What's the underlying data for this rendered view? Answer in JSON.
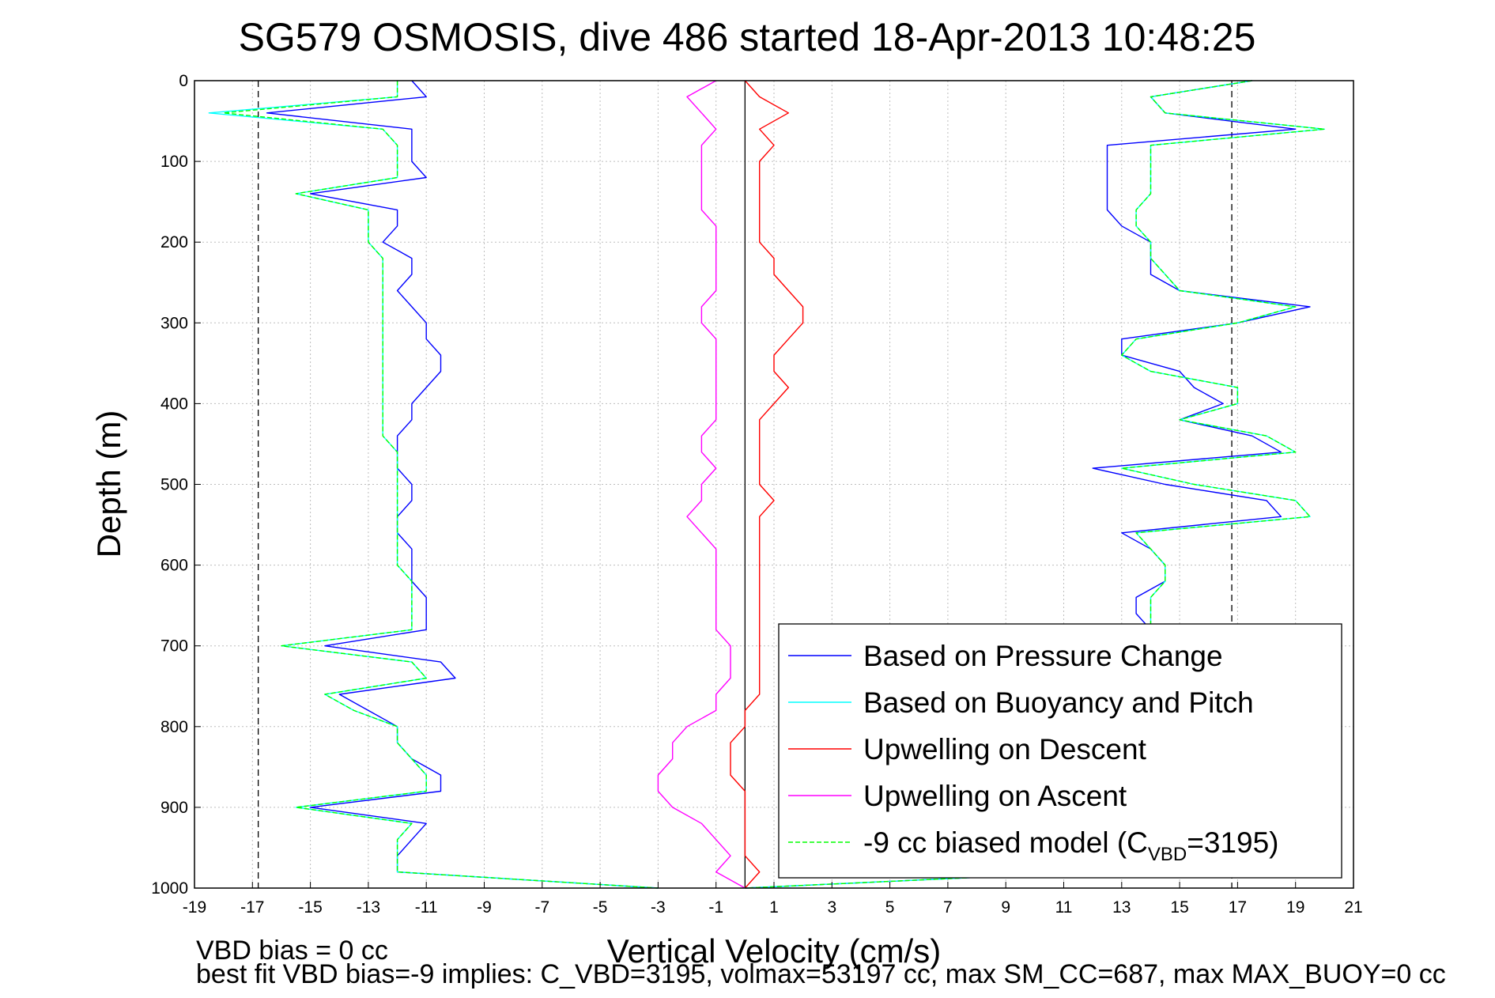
{
  "chart_data": {
    "type": "line",
    "title": "SG579 OSMOSIS, dive 486 started 18-Apr-2013 10:48:25",
    "xlabel": "Vertical Velocity (cm/s)",
    "ylabel": "Depth (m)",
    "xlim": [
      -19,
      21
    ],
    "ylim": [
      0,
      1000
    ],
    "y_reversed": true,
    "grid": true,
    "x_ticks": [
      -19,
      -17,
      -15,
      -13,
      -11,
      -9,
      -7,
      -5,
      -3,
      -1,
      1,
      3,
      5,
      7,
      9,
      11,
      13,
      15,
      17,
      19,
      21
    ],
    "y_ticks": [
      0,
      100,
      200,
      300,
      400,
      500,
      600,
      700,
      800,
      900,
      1000
    ],
    "reference_lines": [
      {
        "x": 0,
        "style": "solid",
        "color": "#000000"
      },
      {
        "x": -16.8,
        "style": "dashed",
        "color": "#000000"
      },
      {
        "x": 16.8,
        "style": "dashed",
        "color": "#000000"
      }
    ],
    "legend": {
      "position": "bottom-right",
      "entries": [
        {
          "label": "Based on Pressure Change",
          "color": "#0000ff",
          "style": "solid"
        },
        {
          "label": "Based on Buoyancy and Pitch",
          "color": "#00ffff",
          "style": "solid"
        },
        {
          "label": "Upwelling on Descent",
          "color": "#ff0000",
          "style": "solid"
        },
        {
          "label": "Upwelling on Ascent",
          "color": "#ff00ff",
          "style": "solid"
        },
        {
          "label": "-9 cc biased model (C",
          "sub": "VBD",
          "suffix": "=3195)",
          "color": "#00ff00",
          "style": "dashed"
        }
      ]
    },
    "series": [
      {
        "name": "Based on Pressure Change",
        "color": "#0000ff",
        "depth": [
          0,
          20,
          40,
          60,
          80,
          100,
          120,
          140,
          160,
          180,
          200,
          220,
          240,
          260,
          280,
          300,
          320,
          340,
          360,
          380,
          400,
          420,
          440,
          460,
          480,
          500,
          520,
          540,
          560,
          580,
          600,
          620,
          640,
          660,
          680,
          700,
          720,
          740,
          760,
          780,
          800,
          820,
          840,
          860,
          880,
          900,
          920,
          940,
          960,
          980,
          1000
        ],
        "descent": [
          -11.5,
          -11.0,
          -16.5,
          -11.5,
          -11.5,
          -11.5,
          -11.0,
          -15.0,
          -12.0,
          -12.0,
          -12.5,
          -11.5,
          -11.5,
          -12.0,
          -11.5,
          -11.0,
          -11.0,
          -10.5,
          -10.5,
          -11.0,
          -11.5,
          -11.5,
          -12.0,
          -12.0,
          -12.0,
          -11.5,
          -11.5,
          -12.0,
          -12.0,
          -11.5,
          -11.5,
          -11.5,
          -11.0,
          -11.0,
          -11.0,
          -14.5,
          -10.5,
          -10.0,
          -14.0,
          -13.0,
          -12.0,
          -12.0,
          -11.5,
          -10.5,
          -10.5,
          -15.0,
          -11.0,
          -11.5,
          -12.0,
          -12.0,
          -3.0
        ],
        "ascent": [
          17.5,
          14.0,
          14.5,
          19.0,
          12.5,
          12.5,
          12.5,
          12.5,
          12.5,
          13.0,
          14.0,
          14.0,
          14.0,
          15.0,
          19.5,
          17.0,
          13.0,
          13.0,
          15.0,
          15.5,
          16.5,
          15.0,
          17.5,
          18.5,
          12.0,
          14.5,
          18.0,
          18.5,
          13.0,
          14.0,
          14.5,
          14.5,
          13.5,
          13.5,
          14.0,
          null,
          null,
          null,
          null,
          null,
          null,
          null,
          null,
          null,
          null,
          null,
          null,
          null,
          null,
          12.0,
          0
        ]
      },
      {
        "name": "Based on Buoyancy and Pitch",
        "color": "#00ffff",
        "depth": [
          0,
          20,
          40,
          60,
          80,
          100,
          120,
          140,
          160,
          180,
          200,
          220,
          240,
          260,
          280,
          300,
          320,
          340,
          360,
          380,
          400,
          420,
          440,
          460,
          480,
          500,
          520,
          540,
          560,
          580,
          600,
          620,
          640,
          660,
          680,
          700,
          720,
          740,
          760,
          780,
          800,
          820,
          840,
          860,
          880,
          900,
          920,
          940,
          960,
          980,
          1000
        ],
        "descent": [
          -12.0,
          -12.0,
          -18.5,
          -12.5,
          -12.0,
          -12.0,
          -12.0,
          -15.5,
          -13.0,
          -13.0,
          -13.0,
          -12.5,
          -12.5,
          -12.5,
          -12.5,
          -12.5,
          -12.5,
          -12.5,
          -12.5,
          -12.5,
          -12.5,
          -12.5,
          -12.5,
          -12.0,
          -12.0,
          -12.0,
          -12.0,
          -12.0,
          -12.0,
          -12.0,
          -12.0,
          -11.5,
          -11.5,
          -11.5,
          -11.5,
          -16.0,
          -11.5,
          -11.0,
          -14.5,
          -13.5,
          -12.0,
          -12.0,
          -11.5,
          -11.0,
          -11.0,
          -15.5,
          -11.5,
          -12.0,
          -12.0,
          -12.0,
          -3.0
        ],
        "ascent": [
          17.5,
          14.0,
          14.5,
          20.0,
          14.0,
          14.0,
          14.0,
          14.0,
          13.5,
          13.5,
          14.0,
          14.0,
          14.5,
          15.0,
          19.0,
          17.0,
          13.5,
          13.0,
          14.0,
          17.0,
          17.0,
          15.0,
          18.0,
          19.0,
          13.0,
          15.5,
          19.0,
          19.5,
          13.5,
          14.0,
          14.5,
          14.5,
          14.0,
          14.0,
          14.0,
          null,
          null,
          null,
          null,
          null,
          null,
          null,
          null,
          null,
          null,
          null,
          null,
          null,
          null,
          12.0,
          0
        ]
      },
      {
        "name": "Upwelling on Descent",
        "color": "#ff0000",
        "depth": [
          0,
          20,
          40,
          60,
          80,
          100,
          120,
          140,
          160,
          180,
          200,
          220,
          240,
          260,
          280,
          300,
          320,
          340,
          360,
          380,
          400,
          420,
          440,
          460,
          480,
          500,
          520,
          540,
          560,
          580,
          600,
          620,
          640,
          660,
          680,
          700,
          720,
          740,
          760,
          780,
          800,
          820,
          840,
          860,
          880,
          900,
          920,
          940,
          960,
          980,
          1000
        ],
        "values": [
          0.0,
          0.5,
          1.5,
          0.5,
          1.0,
          0.5,
          0.5,
          0.5,
          0.5,
          0.5,
          0.5,
          1.0,
          1.0,
          1.5,
          2.0,
          2.0,
          1.5,
          1.0,
          1.0,
          1.5,
          1.0,
          0.5,
          0.5,
          0.5,
          0.5,
          0.5,
          1.0,
          0.5,
          0.5,
          0.5,
          0.5,
          0.5,
          0.5,
          0.5,
          0.5,
          0.5,
          0.5,
          0.5,
          0.5,
          0.0,
          0.0,
          -0.5,
          -0.5,
          -0.5,
          0.0,
          0.0,
          0.0,
          0.0,
          0.0,
          0.5,
          0.0
        ]
      },
      {
        "name": "Upwelling on Ascent",
        "color": "#ff00ff",
        "depth": [
          0,
          20,
          40,
          60,
          80,
          100,
          120,
          140,
          160,
          180,
          200,
          220,
          240,
          260,
          280,
          300,
          320,
          340,
          360,
          380,
          400,
          420,
          440,
          460,
          480,
          500,
          520,
          540,
          560,
          580,
          600,
          620,
          640,
          660,
          680,
          700,
          720,
          740,
          760,
          780,
          800,
          820,
          840,
          860,
          880,
          900,
          920,
          940,
          960,
          980,
          1000
        ],
        "values": [
          -1.0,
          -2.0,
          -1.5,
          -1.0,
          -1.5,
          -1.5,
          -1.5,
          -1.5,
          -1.5,
          -1.0,
          -1.0,
          -1.0,
          -1.0,
          -1.0,
          -1.5,
          -1.5,
          -1.0,
          -1.0,
          -1.0,
          -1.0,
          -1.0,
          -1.0,
          -1.5,
          -1.5,
          -1.0,
          -1.5,
          -1.5,
          -2.0,
          -1.5,
          -1.0,
          -1.0,
          -1.0,
          -1.0,
          -1.0,
          -1.0,
          -0.5,
          -0.5,
          -0.5,
          -1.0,
          -1.0,
          -2.0,
          -2.5,
          -2.5,
          -3.0,
          -3.0,
          -2.5,
          -1.5,
          -1.0,
          -0.5,
          -1.0,
          0.0
        ]
      },
      {
        "name": "-9 cc biased model (C_VBD=3195)",
        "color": "#00ff00",
        "depth": [
          0,
          20,
          40,
          60,
          80,
          100,
          120,
          140,
          160,
          180,
          200,
          220,
          240,
          260,
          280,
          300,
          320,
          340,
          360,
          380,
          400,
          420,
          440,
          460,
          480,
          500,
          520,
          540,
          560,
          580,
          600,
          620,
          640,
          660,
          680,
          700,
          720,
          740,
          760,
          780,
          800,
          820,
          840,
          860,
          880,
          900,
          920,
          940,
          960,
          980,
          1000
        ],
        "descent": [
          -12.0,
          -12.0,
          -18.0,
          -12.5,
          -12.0,
          -12.0,
          -12.0,
          -15.5,
          -13.0,
          -13.0,
          -13.0,
          -12.5,
          -12.5,
          -12.5,
          -12.5,
          -12.5,
          -12.5,
          -12.5,
          -12.5,
          -12.5,
          -12.5,
          -12.5,
          -12.5,
          -12.0,
          -12.0,
          -12.0,
          -12.0,
          -12.0,
          -12.0,
          -12.0,
          -12.0,
          -11.5,
          -11.5,
          -11.5,
          -11.5,
          -16.0,
          -11.5,
          -11.0,
          -14.5,
          -13.5,
          -12.0,
          -12.0,
          -11.5,
          -11.0,
          -11.0,
          -15.5,
          -11.5,
          -12.0,
          -12.0,
          -12.0,
          -3.0
        ],
        "ascent": [
          17.5,
          14.0,
          14.5,
          20.0,
          14.0,
          14.0,
          14.0,
          14.0,
          13.5,
          13.5,
          14.0,
          14.0,
          14.5,
          15.0,
          19.0,
          17.0,
          13.5,
          13.0,
          14.0,
          17.0,
          17.0,
          15.0,
          18.0,
          19.0,
          13.0,
          15.5,
          19.0,
          19.5,
          13.5,
          14.0,
          14.5,
          14.5,
          14.0,
          14.0,
          14.0,
          null,
          null,
          null,
          null,
          null,
          null,
          null,
          null,
          null,
          null,
          null,
          null,
          null,
          null,
          12.0,
          0
        ]
      }
    ]
  },
  "footnotes": {
    "line1": "VBD bias = 0 cc",
    "line2": "best fit VBD bias=-9 implies: C_VBD=3195, volmax=53197 cc, max SM_CC=687, max MAX_BUOY=0 cc"
  }
}
